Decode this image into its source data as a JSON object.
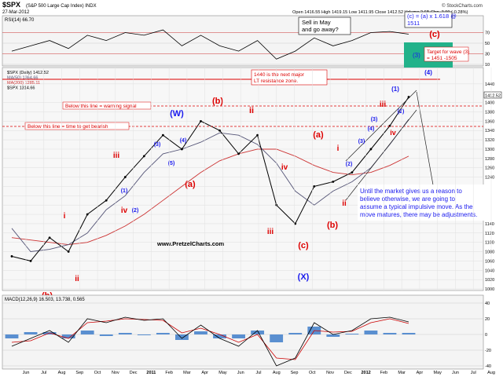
{
  "header": {
    "symbol": "$SPX",
    "name": "(S&P 500 Large Cap Index)  INDX",
    "date": "27-Mar-2012",
    "quote": "Open 1416.55   High 1419.15   Low 1411.95   Close 1412.52   Volume 2.6B   Chg -3.99 (-0.28%)",
    "watermark": "© StockCharts.com"
  },
  "colors": {
    "price": "#000000",
    "ma50": "#555577",
    "ma200": "#cc3333",
    "rsi": "#000000",
    "macd_line": "#000000",
    "macd_signal": "#cc0000",
    "histogram": "#5a8fd0",
    "panel_bg": "#f4f4f4",
    "wave_blue": "#1a1aee",
    "wave_red": "#dd0000",
    "target_box": "#22b28a"
  },
  "rsi_panel": {
    "legend": "RSI(14) 66.70",
    "scale_labels": [
      "70",
      "50",
      "30",
      "10"
    ]
  },
  "price_panel": {
    "legend": [
      "$SPX (Daily) 1412.52",
      "MA(50) 1364.66",
      "MA(200) 1285.11",
      "$SPX 1314.66"
    ],
    "y_labels": [
      "1440",
      "1400",
      "1380",
      "1360",
      "1340",
      "1320",
      "1300",
      "1280",
      "1260",
      "1240",
      "1220",
      "1200",
      "1180",
      "1160",
      "1140",
      "1120",
      "1100",
      "1080",
      "1060",
      "1040",
      "1020",
      "1000"
    ],
    "last_price": "1412.52",
    "website": "www.PretzelCharts.com"
  },
  "macd_panel": {
    "legend": "MACD(12,26,9) 16.503, 13.738, 0.565",
    "scale_labels": [
      "40",
      "20",
      "0",
      "-20",
      "-40"
    ]
  },
  "x_axis": {
    "labels": [
      "Jun",
      "Jul",
      "Aug",
      "Sep",
      "Oct",
      "Nov",
      "Dec",
      "2011",
      "Feb",
      "Mar",
      "Apr",
      "May",
      "Jun",
      "Jul",
      "Aug",
      "Sep",
      "Oct",
      "Nov",
      "Dec",
      "2012",
      "Feb",
      "Mar",
      "Apr",
      "May",
      "Jun",
      "Jul",
      "Aug"
    ]
  },
  "annotations": {
    "sell_in_may": "Sell in May\nand go away?",
    "formula": "(c) = (a) x 1.618 @\n1511",
    "target_label": "(3)",
    "target_text": "Target for wave (3)\n= 1451 -1505",
    "resistance": "1440 is the next major\nLT resistance zone.",
    "warning": "Below this line = warning signal",
    "bearish": "Below this line = time to get bearish",
    "commentary": "Until the market gives us a reason to\nbelieve otherwise, we are going to\nassume a typical impulsive move.  As the\nmove matures, there may be adjustments."
  },
  "wave_labels": [
    {
      "text": "(c)",
      "color": "red"
    },
    {
      "text": "(4)",
      "color": "blue"
    },
    {
      "text": "(1)",
      "color": "blue"
    },
    {
      "text": "iii",
      "color": "red"
    },
    {
      "text": "(2)",
      "color": "blue"
    },
    {
      "text": "(3)",
      "color": "blue"
    },
    {
      "text": "iv",
      "color": "red"
    },
    {
      "text": "(W)",
      "color": "blue"
    },
    {
      "text": "(b)",
      "color": "red"
    },
    {
      "text": "ii",
      "color": "red"
    },
    {
      "text": "(3)",
      "color": "blue"
    },
    {
      "text": "(5)",
      "color": "blue"
    },
    {
      "text": "(4)",
      "color": "blue"
    },
    {
      "text": "(a)",
      "color": "red"
    },
    {
      "text": "iii",
      "color": "red"
    },
    {
      "text": "(1)",
      "color": "blue"
    },
    {
      "text": "iv",
      "color": "red"
    },
    {
      "text": "(2)",
      "color": "blue"
    },
    {
      "text": "i",
      "color": "red"
    },
    {
      "text": "ii",
      "color": "red"
    },
    {
      "text": "(b)",
      "color": "red"
    },
    {
      "text": "iv",
      "color": "red"
    },
    {
      "text": "iii",
      "color": "red"
    },
    {
      "text": "(c)",
      "color": "red"
    },
    {
      "text": "(X)",
      "color": "blue"
    },
    {
      "text": "(a)",
      "color": "red"
    },
    {
      "text": "i",
      "color": "red"
    },
    {
      "text": "ii",
      "color": "red"
    },
    {
      "text": "(b)",
      "color": "red"
    },
    {
      "text": "(2)",
      "color": "blue"
    },
    {
      "text": "(3)",
      "color": "blue"
    },
    {
      "text": "(4)",
      "color": "blue"
    }
  ],
  "chart_data": {
    "type": "line",
    "title": "$SPX (S&P 500 Large Cap Index)",
    "x": [
      "2010-06",
      "2010-07",
      "2010-08",
      "2010-09",
      "2010-10",
      "2010-11",
      "2010-12",
      "2011-01",
      "2011-02",
      "2011-03",
      "2011-04",
      "2011-05",
      "2011-06",
      "2011-07",
      "2011-08",
      "2011-09",
      "2011-10",
      "2011-11",
      "2011-12",
      "2012-01",
      "2012-02",
      "2012-03"
    ],
    "series": [
      {
        "name": "$SPX (Daily) 1412.52",
        "values": [
          1070,
          1060,
          1110,
          1080,
          1160,
          1190,
          1240,
          1285,
          1330,
          1300,
          1360,
          1340,
          1290,
          1330,
          1180,
          1140,
          1220,
          1230,
          1250,
          1300,
          1350,
          1412
        ]
      },
      {
        "name": "MA(50) 1364.66",
        "values": [
          1130,
          1080,
          1085,
          1095,
          1120,
          1170,
          1200,
          1250,
          1290,
          1300,
          1315,
          1335,
          1330,
          1310,
          1270,
          1210,
          1180,
          1210,
          1230,
          1260,
          1310,
          1364
        ]
      },
      {
        "name": "MA(200) 1285.11",
        "values": [
          1110,
          1105,
          1100,
          1095,
          1100,
          1115,
          1135,
          1160,
          1190,
          1220,
          1250,
          1275,
          1290,
          1300,
          1300,
          1285,
          1265,
          1250,
          1245,
          1250,
          1265,
          1285
        ]
      }
    ],
    "ylim": [
      1000,
      1460
    ],
    "rsi": {
      "name": "RSI(14) 66.70",
      "ylim": [
        10,
        90
      ],
      "values": [
        35,
        45,
        55,
        40,
        65,
        55,
        70,
        65,
        75,
        45,
        65,
        45,
        35,
        55,
        20,
        35,
        60,
        45,
        55,
        70,
        72,
        67
      ]
    },
    "macd": {
      "name": "MACD(12,26,9) 16.503, 13.738, 0.565",
      "ylim": [
        -40,
        40
      ],
      "macd": [
        -15,
        -5,
        5,
        -10,
        20,
        15,
        22,
        18,
        20,
        -5,
        12,
        -5,
        -15,
        5,
        -40,
        -30,
        15,
        0,
        5,
        20,
        22,
        16
      ],
      "signal": [
        -10,
        -8,
        2,
        -5,
        15,
        17,
        20,
        19,
        18,
        2,
        8,
        0,
        -10,
        0,
        -30,
        -32,
        5,
        3,
        4,
        15,
        20,
        14
      ]
    },
    "grid": true,
    "legend": "top-left"
  }
}
